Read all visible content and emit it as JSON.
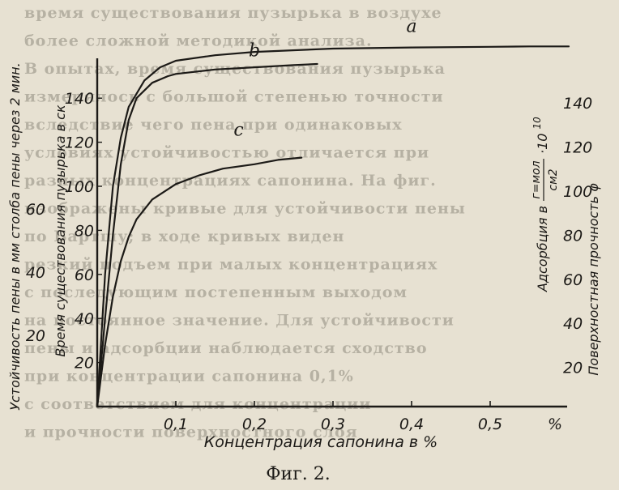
{
  "caption": "Фиг. 2.",
  "background_text_lines": [
    "время существования пузырька в воздухе",
    "более сложной методикой анализа.",
    "В опытах, время существования пузырька",
    "измерялось с большой степенью точности",
    "вследствие чего пена при одинаковых",
    "условиях устойчивостью отличается при",
    "разных концентрациях сапонина. На фиг.",
    "изображены кривые для устойчивости пены",
    "по Бартшу; в ходе кривых виден",
    "резкий подъем при малых концентрациях",
    "с последующим постепенным выходом",
    "на постоянное значение. Для устойчивости",
    "пены и адсорбции наблюдается сходство",
    "при концентрации сапонина 0,1%",
    "с соответствием для концентрации",
    "и прочности поверхностного слоя"
  ],
  "chart_data": {
    "type": "line",
    "title": "",
    "xlabel": "Концентрация сапонина в %",
    "x_axis": {
      "range": [
        0,
        0.6
      ],
      "ticks": [
        0.1,
        0.2,
        0.3,
        0.4,
        0.5
      ],
      "tick_labels": [
        "0,1",
        "0,2",
        "0,3",
        "0,4",
        "0,5"
      ],
      "unit_label": "%"
    },
    "y_axes": {
      "left_outer": {
        "label": "Устойчивость пены в мм столба пены через 2 мин.",
        "ticks": [
          20,
          40,
          60
        ],
        "tick_labels": [
          "20",
          "40",
          "60"
        ]
      },
      "left_inner": {
        "label": "Время существования пузырька в ск",
        "ticks": [
          20,
          40,
          60,
          80,
          100,
          120,
          140
        ],
        "tick_labels": [
          "20",
          "40",
          "60",
          "80",
          "100",
          "120",
          "140"
        ]
      },
      "right_inner": {
        "label_prefix": "Адсорбция в",
        "label_fraction_numerator": "г=мол",
        "label_fraction_denominator": "см2",
        "label_suffix": "·10",
        "label_exponent": "10",
        "ticks": [
          20,
          40,
          60,
          80,
          100,
          120,
          140
        ],
        "tick_labels": [
          "20",
          "40",
          "60",
          "80",
          "100",
          "120",
          "140"
        ]
      },
      "right_outer": {
        "label": "Поверхностная прочность φ"
      }
    },
    "y_range": [
      0,
      160
    ],
    "grid": false,
    "series": [
      {
        "name": "a",
        "x": [
          0.0,
          0.01,
          0.02,
          0.03,
          0.04,
          0.06,
          0.08,
          0.1,
          0.15,
          0.2,
          0.3,
          0.4,
          0.5,
          0.55,
          0.6
        ],
        "y": [
          0,
          60,
          100,
          122,
          136,
          148,
          154,
          157,
          159.5,
          161,
          162.5,
          163,
          163.3,
          163.5,
          163.5
        ]
      },
      {
        "name": "b",
        "x": [
          0.0,
          0.01,
          0.02,
          0.03,
          0.04,
          0.05,
          0.07,
          0.09,
          0.1,
          0.15,
          0.2,
          0.25,
          0.28
        ],
        "y": [
          0,
          40,
          78,
          110,
          130,
          140,
          147,
          150,
          151,
          153,
          154,
          155,
          155.5
        ]
      },
      {
        "name": "c",
        "x": [
          0.0,
          0.01,
          0.02,
          0.03,
          0.04,
          0.05,
          0.07,
          0.1,
          0.13,
          0.16,
          0.2,
          0.23,
          0.26
        ],
        "y": [
          0,
          28,
          50,
          66,
          77,
          85,
          94,
          101,
          105,
          108,
          110,
          112,
          113
        ]
      }
    ]
  }
}
